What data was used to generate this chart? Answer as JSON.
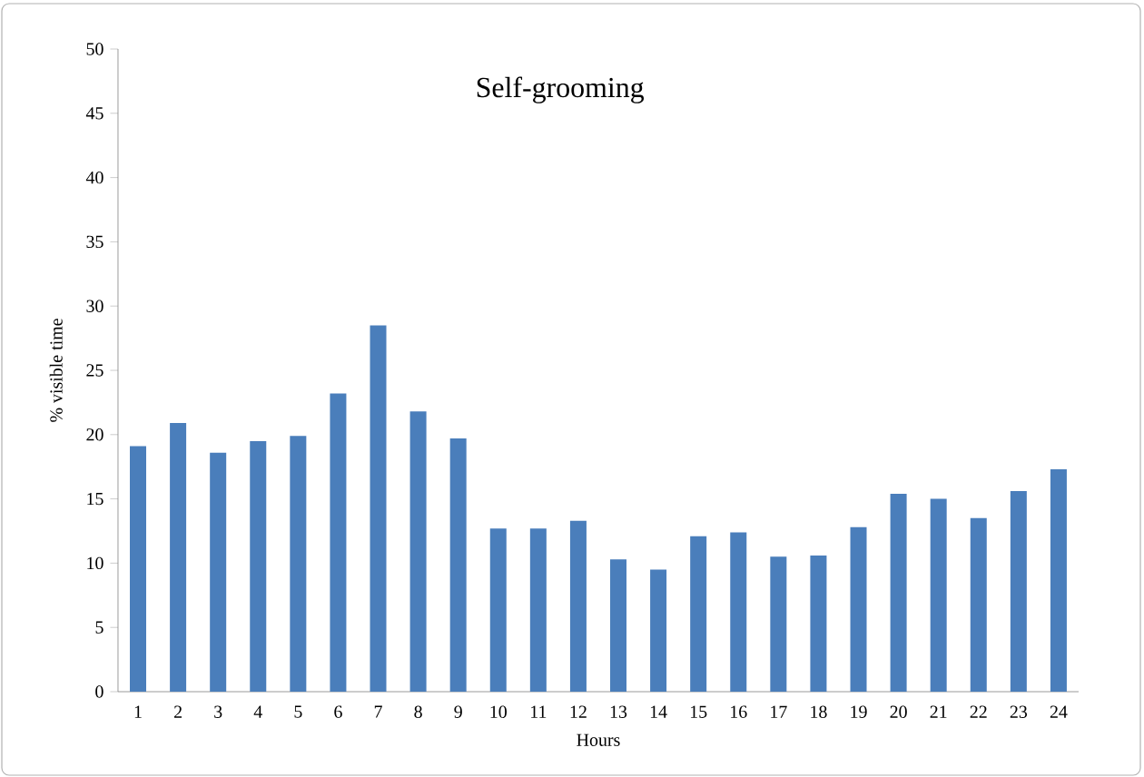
{
  "chart_data": {
    "type": "bar",
    "title": "Self-grooming",
    "xlabel": "Hours",
    "ylabel": "% visible time",
    "categories": [
      "1",
      "2",
      "3",
      "4",
      "5",
      "6",
      "7",
      "8",
      "9",
      "10",
      "11",
      "12",
      "13",
      "14",
      "15",
      "16",
      "17",
      "18",
      "19",
      "20",
      "21",
      "22",
      "23",
      "24"
    ],
    "values": [
      19.1,
      20.9,
      18.6,
      19.5,
      19.9,
      23.2,
      28.5,
      21.8,
      19.7,
      12.7,
      12.7,
      13.3,
      10.3,
      9.5,
      12.1,
      12.4,
      10.5,
      10.6,
      12.8,
      15.4,
      15.0,
      13.5,
      15.6,
      17.3
    ],
    "color": "#4a7ebb",
    "ylim": [
      0,
      50
    ],
    "yticks": [
      0,
      5,
      10,
      15,
      20,
      25,
      30,
      35,
      40,
      45,
      50
    ],
    "grid": false
  }
}
